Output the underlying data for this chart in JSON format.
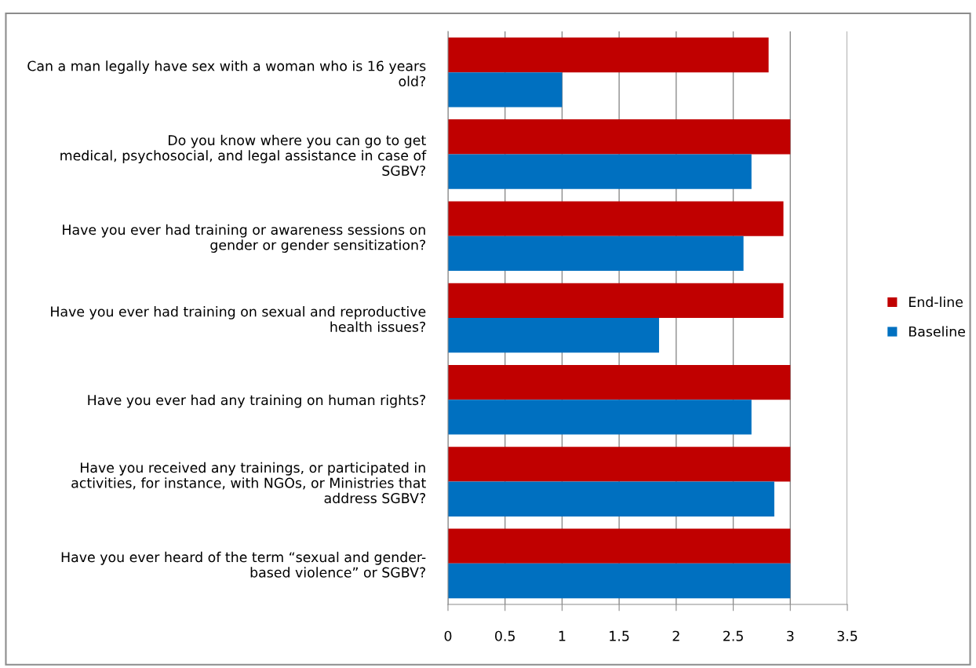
{
  "chart_data": {
    "type": "bar",
    "orientation": "horizontal",
    "categories": [
      "Can a man legally have sex with a woman who is 16 years\nold?",
      "Do you know where you can go to get\nmedical, psychosocial, and legal assistance in case of\nSGBV?",
      "Have you ever had training or awareness sessions on\ngender or gender sensitization?",
      "Have you ever had training on sexual and reproductive\nhealth issues?",
      "Have you ever had any training on human rights?",
      "Have you received any trainings, or participated in\nactivities, for instance, with NGOs, or Ministries that\naddress SGBV?",
      "Have you ever heard of the term “sexual and gender-\nbased violence” or SGBV?"
    ],
    "series": [
      {
        "name": "End-line",
        "color": "#c00000",
        "values": [
          2.81,
          3.0,
          2.94,
          2.94,
          3.0,
          3.0,
          3.0
        ]
      },
      {
        "name": "Baseline",
        "color": "#0070c0",
        "values": [
          1.0,
          2.66,
          2.59,
          1.85,
          2.66,
          2.86,
          3.0
        ]
      }
    ],
    "xlim": [
      0,
      3.5
    ],
    "xticks": [
      0,
      0.5,
      1,
      1.5,
      2,
      2.5,
      3,
      3.5
    ],
    "grid": "x",
    "legend": "right"
  }
}
